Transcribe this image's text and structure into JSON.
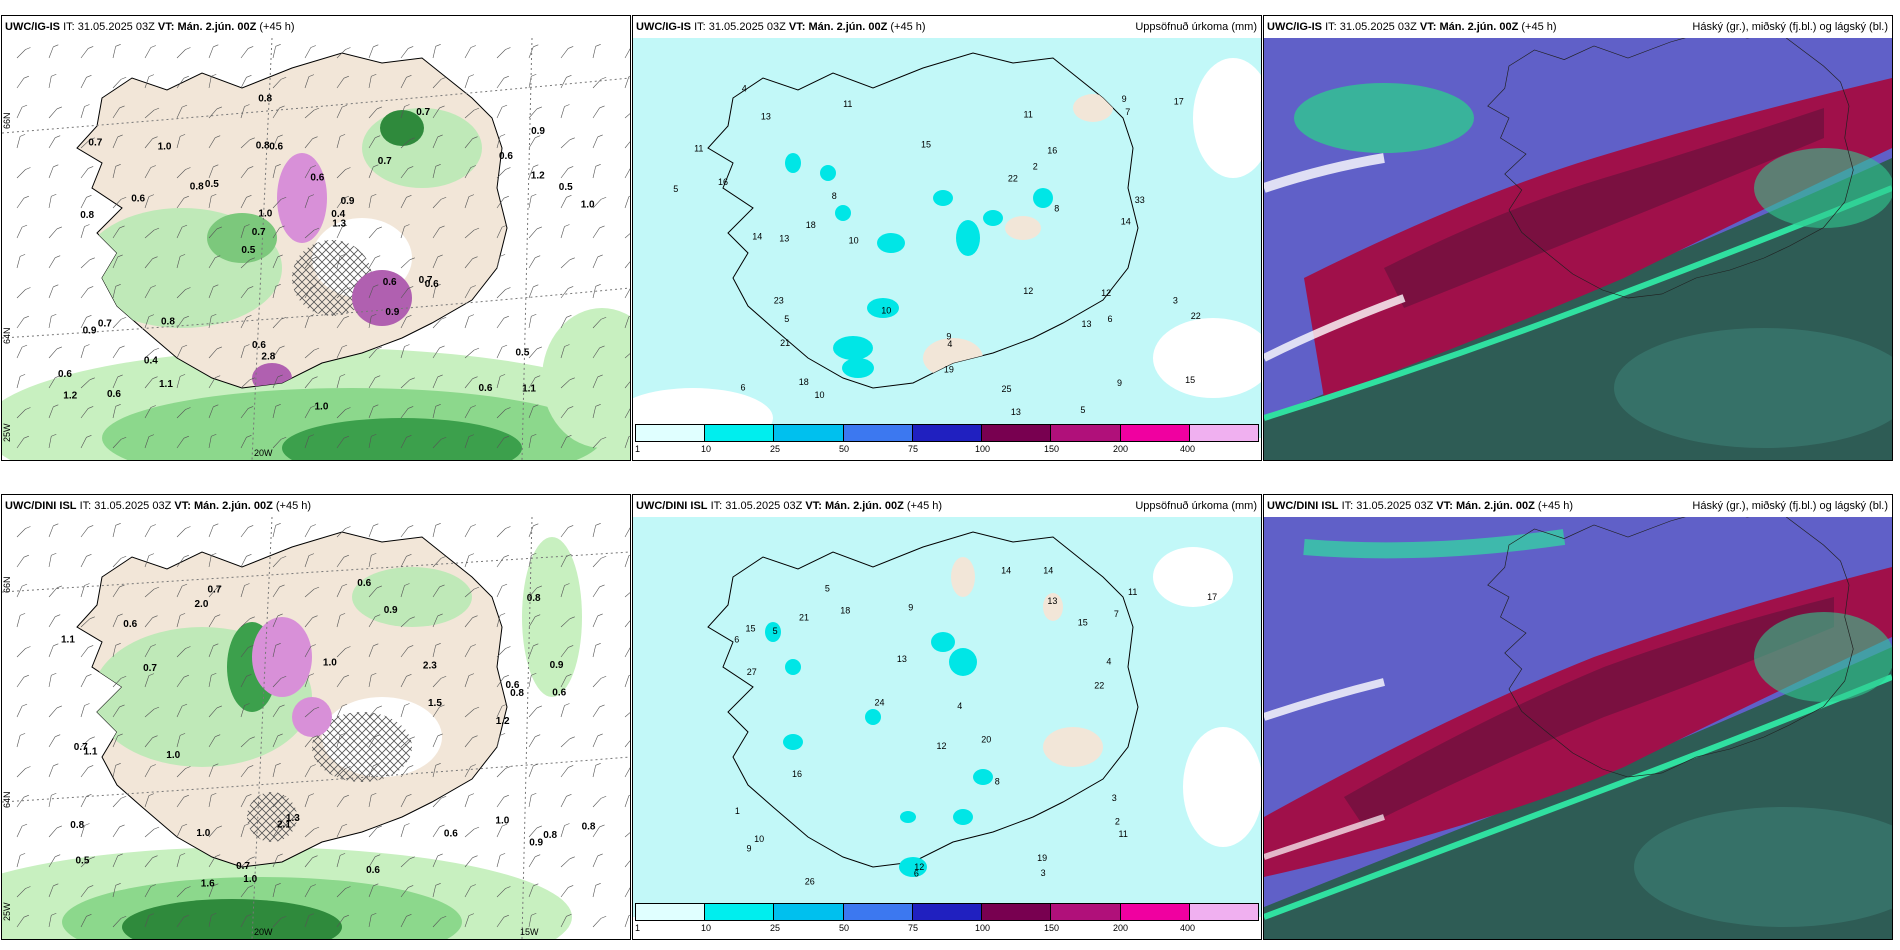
{
  "rows": [
    {
      "model": "UWC/IG-IS",
      "it_label": "IT:",
      "it_value": "31.05.2025 03Z",
      "vt_label": "VT:",
      "vt_value": "Mán. 2.jún. 00Z",
      "lead": "(+45 h)"
    },
    {
      "model": "UWC/DINI ISL",
      "it_label": "IT:",
      "it_value": "31.05.2025 03Z",
      "vt_label": "VT:",
      "vt_value": "Mán. 2.jún. 00Z",
      "lead": "(+45 h)"
    }
  ],
  "precip_title": "Uppsöfnuð úrkoma (mm)",
  "cloud_title": "Háský (gr.), miðský (fj.bl.) og lágský (bl.)",
  "colorbar": {
    "ticks": [
      "1",
      "10",
      "25",
      "50",
      "75",
      "100",
      "150",
      "200",
      "400"
    ],
    "colors": [
      "#e0ffff",
      "#00eeee",
      "#00c0ee",
      "#3c78f0",
      "#2020c0",
      "#780050",
      "#b0107a",
      "#f000a0",
      "#f0b0f0"
    ]
  },
  "grid_labels": {
    "lat66": "66N",
    "lat64": "64N",
    "lon25": "25W",
    "lon20": "20W",
    "lon15": "15W"
  },
  "values": {
    "snow_top": [
      "1.1",
      "0.8",
      "0.9",
      "0.5",
      "0.7",
      "0.6",
      "0.8",
      "0.6",
      "0.7",
      "0.5",
      "0.6",
      "0.4",
      "0.6",
      "0.9",
      "0.6",
      "0.7",
      "0.8",
      "1.0",
      "0.6",
      "1.2",
      "0.7",
      "0.6",
      "1.0",
      "1.0",
      "0.7",
      "0.8",
      "0.6",
      "0.5",
      "0.7",
      "1.0",
      "0.8",
      "0.6",
      "0.9",
      "1.1",
      "0.5",
      "0.4",
      "1.2",
      "2.8",
      "1.3",
      "0.9",
      "0.6"
    ],
    "snow_bot": [
      "1.0",
      "0.9",
      "0.8",
      "1.0",
      "0.5",
      "0.7",
      "0.6",
      "1.0",
      "0.8",
      "0.7",
      "0.6",
      "1.1",
      "1.2",
      "1.0",
      "0.8",
      "0.6",
      "0.9",
      "2.0",
      "1.3",
      "0.8",
      "0.7",
      "1.1",
      "0.6",
      "1.5",
      "0.7",
      "2.1",
      "0.6",
      "0.9",
      "2.3",
      "0.8",
      "1.0",
      "0.6",
      "1.6"
    ],
    "precip_top": [
      "3",
      "5",
      "4",
      "6",
      "9",
      "8",
      "11",
      "16",
      "13",
      "14",
      "12",
      "7",
      "5",
      "8",
      "10",
      "13",
      "21",
      "18",
      "11",
      "15",
      "16",
      "12",
      "9",
      "14",
      "17",
      "22",
      "13",
      "10",
      "23",
      "18",
      "19",
      "33",
      "15",
      "25",
      "22",
      "13",
      "11",
      "9",
      "10",
      "4",
      "6",
      "2",
      "5"
    ],
    "precip_bot": [
      "5",
      "4",
      "3",
      "6",
      "7",
      "9",
      "11",
      "12",
      "13",
      "15",
      "10",
      "14",
      "16",
      "27",
      "12",
      "20",
      "22",
      "18",
      "15",
      "13",
      "14",
      "26",
      "24",
      "19",
      "21",
      "17",
      "11",
      "9",
      "8",
      "6",
      "5",
      "4",
      "2",
      "3",
      "1"
    ]
  }
}
